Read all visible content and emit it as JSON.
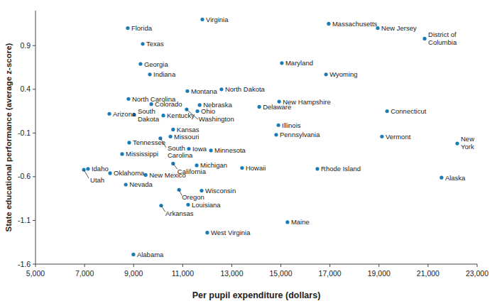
{
  "chart_data": {
    "type": "scatter",
    "x_label": "Per pupil expenditure (dollars)",
    "y_label": "State educational performance (average z-score)",
    "color": "#1b7db8",
    "marker": "circle",
    "grid": false,
    "xlim": [
      5000,
      23000
    ],
    "ylim": [
      -1.6,
      1.3
    ],
    "xticks": [
      {
        "value": 5000,
        "label": "5,000"
      },
      {
        "value": 7000,
        "label": "7,000"
      },
      {
        "value": 9000,
        "label": "9,000"
      },
      {
        "value": 11000,
        "label": "11,000"
      },
      {
        "value": 13000,
        "label": "13,000"
      },
      {
        "value": 15000,
        "label": "15,000"
      },
      {
        "value": 17000,
        "label": "17,000"
      },
      {
        "value": 19000,
        "label": "19,000"
      },
      {
        "value": 21000,
        "label": "21,000"
      },
      {
        "value": 23000,
        "label": "23,000"
      }
    ],
    "yticks": [
      -1.6,
      -1.1,
      -0.6,
      -0.1,
      0.4,
      0.9
    ],
    "labels": [
      "Florida",
      "Virginia",
      "Massachusetts",
      "New Jersey",
      "District of Columbia",
      "Texas",
      "Georgia",
      "Maryland",
      "Indiana",
      "Wyoming",
      "Montana",
      "North Dakota",
      "North Carolina",
      "New Hampshire",
      "Colorado",
      "Nebraska",
      "Delaware",
      "Arizona",
      "South Dakota",
      "Kentucky",
      "Washington",
      "Ohio",
      "Connecticut",
      "Illinois",
      "Kansas",
      "Missouri",
      "Pennsylvania",
      "Vermont",
      "New York",
      "Tennessee",
      "South Carolina",
      "Iowa",
      "Minnesota",
      "Mississippi",
      "California",
      "Michigan",
      "Howaii",
      "Rhode Island",
      "Idaho",
      "Utah",
      "Oklahoma",
      "New Mexico",
      "Alaska",
      "Nevada",
      "Oregon",
      "Wisconsin",
      "Louisiana",
      "Arkansas",
      "Maine",
      "West Virginia",
      "Alabama"
    ],
    "x": [
      8760,
      11800,
      16950,
      18950,
      20860,
      9370,
      9280,
      15040,
      9660,
      16840,
      11190,
      12580,
      8790,
      14930,
      9720,
      11690,
      14120,
      8010,
      9020,
      10210,
      11160,
      11600,
      19330,
      14900,
      10610,
      10500,
      14810,
      19120,
      22190,
      8820,
      10090,
      11250,
      12150,
      8530,
      10610,
      11570,
      13420,
      16490,
      7140,
      6970,
      8040,
      9490,
      21550,
      8680,
      10850,
      11770,
      11220,
      10120,
      15270,
      12000,
      8990
    ],
    "values": [
      1.1,
      1.2,
      1.15,
      1.1,
      0.98,
      0.92,
      0.69,
      0.7,
      0.57,
      0.57,
      0.38,
      0.4,
      0.29,
      0.26,
      0.23,
      0.22,
      0.2,
      0.12,
      0.11,
      0.1,
      0.17,
      0.15,
      0.15,
      -0.01,
      -0.06,
      -0.14,
      -0.12,
      -0.14,
      -0.22,
      -0.21,
      -0.16,
      -0.28,
      -0.3,
      -0.34,
      -0.45,
      -0.47,
      -0.5,
      -0.51,
      -0.51,
      -0.52,
      -0.56,
      -0.58,
      -0.61,
      -0.69,
      -0.75,
      -0.76,
      -0.92,
      -0.93,
      -1.12,
      -1.24,
      -1.49
    ]
  }
}
